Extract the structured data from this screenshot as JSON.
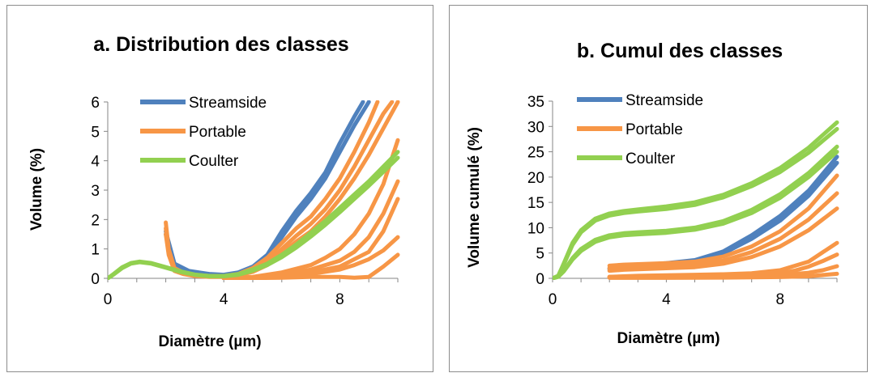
{
  "chart_data": [
    {
      "type": "line",
      "title": "a. Distribution des classes",
      "xlabel": "Diamètre (µm)",
      "ylabel": "Volume (%)",
      "xlim": [
        0,
        10
      ],
      "ylim": [
        0,
        6
      ],
      "xticks": [
        "0",
        "4",
        "8"
      ],
      "yticks": [
        "0",
        "1",
        "2",
        "3",
        "4",
        "5",
        "6"
      ],
      "legend": {
        "placement": "top-left",
        "entries": [
          "Streamside",
          "Portable",
          "Coulter"
        ]
      },
      "colors": {
        "Streamside": "#4f81bd",
        "Portable": "#f79646",
        "Coulter": "#92d050"
      },
      "series": [
        {
          "name": "Streamside",
          "color": "#4f81bd",
          "curves": [
            {
              "x": [
                2.0,
                2.3,
                2.8,
                3.5,
                4.0,
                4.5,
                5.0,
                5.5,
                6.0,
                6.5,
                7.0,
                7.5,
                8.0,
                8.5,
                8.8
              ],
              "y": [
                1.6,
                0.5,
                0.25,
                0.15,
                0.12,
                0.2,
                0.4,
                0.8,
                1.6,
                2.3,
                2.9,
                3.6,
                4.6,
                5.5,
                6.0
              ]
            },
            {
              "x": [
                2.0,
                2.3,
                2.8,
                3.5,
                4.0,
                4.5,
                5.0,
                5.5,
                6.0,
                6.5,
                7.0,
                7.5,
                8.0,
                8.5,
                9.0
              ],
              "y": [
                1.5,
                0.45,
                0.22,
                0.13,
                0.1,
                0.17,
                0.35,
                0.7,
                1.4,
                2.1,
                2.7,
                3.4,
                4.3,
                5.2,
                6.0
              ]
            }
          ]
        },
        {
          "name": "Portable",
          "color": "#f79646",
          "curves": [
            {
              "x": [
                2.0,
                2.1,
                2.3,
                2.6,
                3.0,
                3.5,
                4.0,
                4.5,
                5.0,
                5.5,
                6.0,
                6.5,
                7.0,
                7.5,
                8.0,
                8.5,
                9.0,
                9.3
              ],
              "y": [
                1.9,
                1.0,
                0.35,
                0.2,
                0.12,
                0.08,
                0.08,
                0.15,
                0.35,
                0.7,
                1.2,
                1.7,
                2.1,
                2.7,
                3.4,
                4.3,
                5.3,
                6.0
              ]
            },
            {
              "x": [
                2.0,
                2.1,
                2.3,
                2.6,
                3.0,
                3.5,
                4.0,
                4.5,
                5.0,
                5.5,
                6.0,
                6.5,
                7.0,
                7.5,
                8.0,
                8.5,
                9.0,
                9.5,
                9.8
              ],
              "y": [
                1.7,
                0.9,
                0.3,
                0.18,
                0.1,
                0.06,
                0.06,
                0.12,
                0.28,
                0.55,
                1.0,
                1.45,
                1.85,
                2.35,
                3.0,
                3.8,
                4.7,
                5.6,
                6.0
              ]
            },
            {
              "x": [
                2.0,
                2.1,
                2.3,
                2.6,
                3.0,
                3.5,
                4.0,
                4.5,
                5.0,
                5.5,
                6.0,
                6.5,
                7.0,
                7.5,
                8.0,
                8.5,
                9.0,
                9.5,
                10.0
              ],
              "y": [
                1.5,
                0.8,
                0.25,
                0.15,
                0.08,
                0.05,
                0.05,
                0.1,
                0.22,
                0.45,
                0.85,
                1.25,
                1.6,
                2.1,
                2.7,
                3.4,
                4.2,
                5.1,
                6.0
              ]
            },
            {
              "x": [
                4.0,
                5.0,
                6.0,
                7.0,
                7.5,
                8.0,
                8.5,
                9.0,
                9.5,
                10.0
              ],
              "y": [
                0.0,
                0.05,
                0.2,
                0.45,
                0.7,
                1.0,
                1.5,
                2.2,
                3.2,
                4.7
              ]
            },
            {
              "x": [
                4.0,
                5.0,
                6.0,
                7.0,
                8.0,
                8.5,
                9.0,
                9.5,
                10.0
              ],
              "y": [
                0.0,
                0.03,
                0.12,
                0.3,
                0.6,
                0.9,
                1.4,
                2.2,
                3.3
              ]
            },
            {
              "x": [
                4.0,
                5.0,
                6.0,
                7.0,
                8.0,
                9.0,
                9.5,
                10.0
              ],
              "y": [
                0.0,
                0.02,
                0.08,
                0.2,
                0.4,
                0.9,
                1.6,
                2.7
              ]
            },
            {
              "x": [
                4.0,
                6.0,
                7.0,
                8.0,
                8.5,
                9.0,
                9.5,
                10.0
              ],
              "y": [
                0.0,
                0.05,
                0.15,
                0.3,
                0.45,
                0.65,
                0.95,
                1.4
              ]
            },
            {
              "x": [
                4.0,
                6.0,
                7.0,
                8.0,
                8.5,
                9.0,
                9.5,
                10.0
              ],
              "y": [
                0.0,
                0.02,
                0.05,
                0.05,
                0.02,
                0.05,
                0.4,
                0.8
              ]
            }
          ]
        },
        {
          "name": "Coulter",
          "color": "#92d050",
          "curves": [
            {
              "x": [
                0.0,
                0.2,
                0.5,
                0.8,
                1.1,
                1.5,
                2.0,
                2.5,
                3.0,
                3.5,
                4.0,
                4.5,
                5.0,
                5.5,
                6.0,
                6.5,
                7.0,
                7.5,
                8.0,
                8.5,
                9.0,
                9.5,
                10.0
              ],
              "y": [
                0.0,
                0.15,
                0.38,
                0.52,
                0.57,
                0.52,
                0.38,
                0.24,
                0.13,
                0.08,
                0.08,
                0.14,
                0.3,
                0.5,
                0.8,
                1.15,
                1.55,
                1.95,
                2.4,
                2.85,
                3.3,
                3.8,
                4.3
              ]
            },
            {
              "x": [
                0.0,
                0.2,
                0.5,
                0.8,
                1.1,
                1.5,
                2.0,
                2.5,
                3.0,
                3.5,
                4.0,
                4.5,
                5.0,
                5.5,
                6.0,
                6.5,
                7.0,
                7.5,
                8.0,
                8.5,
                9.0,
                9.5,
                10.0
              ],
              "y": [
                0.0,
                0.13,
                0.35,
                0.5,
                0.55,
                0.5,
                0.36,
                0.22,
                0.12,
                0.07,
                0.07,
                0.12,
                0.26,
                0.45,
                0.72,
                1.05,
                1.42,
                1.82,
                2.25,
                2.7,
                3.15,
                3.62,
                4.1
              ]
            }
          ]
        }
      ]
    },
    {
      "type": "line",
      "title": "b. Cumul des classes",
      "xlabel": "Diamètre (µm)",
      "ylabel": "Volume cumulé (%)",
      "xlim": [
        0,
        10
      ],
      "ylim": [
        0,
        35
      ],
      "xticks": [
        "0",
        "4",
        "8"
      ],
      "yticks": [
        "0",
        "5",
        "10",
        "15",
        "20",
        "25",
        "30",
        "35"
      ],
      "legend": {
        "placement": "top-left",
        "entries": [
          "Streamside",
          "Portable",
          "Coulter"
        ]
      },
      "colors": {
        "Streamside": "#4f81bd",
        "Portable": "#f79646",
        "Coulter": "#92d050"
      },
      "series": [
        {
          "name": "Streamside",
          "color": "#4f81bd",
          "curves": [
            {
              "x": [
                2.0,
                3.0,
                4.0,
                5.0,
                6.0,
                7.0,
                8.0,
                9.0,
                10.0
              ],
              "y": [
                2.0,
                2.6,
                3.0,
                3.6,
                5.3,
                8.5,
                12.3,
                17.3,
                24.0
              ]
            },
            {
              "x": [
                2.0,
                3.0,
                4.0,
                5.0,
                6.0,
                7.0,
                8.0,
                9.0,
                10.0
              ],
              "y": [
                1.8,
                2.4,
                2.8,
                3.3,
                4.9,
                7.8,
                11.4,
                16.3,
                22.8
              ]
            }
          ]
        },
        {
          "name": "Portable",
          "color": "#f79646",
          "curves": [
            {
              "x": [
                2.0,
                2.5,
                3.0,
                4.0,
                5.0,
                6.0,
                7.0,
                8.0,
                9.0,
                10.0
              ],
              "y": [
                2.5,
                2.7,
                2.8,
                3.0,
                3.3,
                4.3,
                6.3,
                9.3,
                13.8,
                20.3
              ]
            },
            {
              "x": [
                2.0,
                2.5,
                3.0,
                4.0,
                5.0,
                6.0,
                7.0,
                8.0,
                9.0,
                10.0
              ],
              "y": [
                2.0,
                2.2,
                2.3,
                2.5,
                2.8,
                3.5,
                5.2,
                7.8,
                11.6,
                16.8
              ]
            },
            {
              "x": [
                2.0,
                2.5,
                3.0,
                4.0,
                5.0,
                6.0,
                7.0,
                8.0,
                9.0,
                10.0
              ],
              "y": [
                1.5,
                1.7,
                1.8,
                2.0,
                2.2,
                2.9,
                4.2,
                6.3,
                9.5,
                13.8
              ]
            },
            {
              "x": [
                2.0,
                3.0,
                4.0,
                5.0,
                6.0,
                7.0,
                8.0,
                9.0,
                10.0
              ],
              "y": [
                0.3,
                0.5,
                0.6,
                0.7,
                0.8,
                1.0,
                1.6,
                3.3,
                7.0
              ]
            },
            {
              "x": [
                2.0,
                4.0,
                6.0,
                7.0,
                8.0,
                8.5,
                9.0,
                9.5,
                10.0
              ],
              "y": [
                0.3,
                0.3,
                0.4,
                0.6,
                1.0,
                1.5,
                2.3,
                3.4,
                4.7
              ]
            },
            {
              "x": [
                2.0,
                4.0,
                6.0,
                7.0,
                8.0,
                9.0,
                9.5,
                10.0
              ],
              "y": [
                0.2,
                0.2,
                0.3,
                0.4,
                0.6,
                1.1,
                1.6,
                2.4
              ]
            },
            {
              "x": [
                2.0,
                4.0,
                6.0,
                8.0,
                9.0,
                10.0
              ],
              "y": [
                0.1,
                0.1,
                0.15,
                0.25,
                0.4,
                0.9
              ]
            }
          ]
        },
        {
          "name": "Coulter",
          "color": "#92d050",
          "curves": [
            {
              "x": [
                0.0,
                0.2,
                0.4,
                0.7,
                1.0,
                1.5,
                2.0,
                2.5,
                3.0,
                4.0,
                5.0,
                6.0,
                7.0,
                8.0,
                9.0,
                10.0
              ],
              "y": [
                0.0,
                0.5,
                3.0,
                7.0,
                9.5,
                11.8,
                12.8,
                13.3,
                13.6,
                14.2,
                15.0,
                16.5,
                18.8,
                21.8,
                25.8,
                30.8
              ]
            },
            {
              "x": [
                0.0,
                0.2,
                0.4,
                0.7,
                1.0,
                1.5,
                2.0,
                2.5,
                3.0,
                4.0,
                5.0,
                6.0,
                7.0,
                8.0,
                9.0,
                10.0
              ],
              "y": [
                0.0,
                0.5,
                2.8,
                6.6,
                9.1,
                11.4,
                12.4,
                12.9,
                13.2,
                13.7,
                14.5,
                16.0,
                18.2,
                21.0,
                24.8,
                29.5
              ]
            },
            {
              "x": [
                0.0,
                0.2,
                0.4,
                0.7,
                1.0,
                1.5,
                2.0,
                2.5,
                3.0,
                4.0,
                5.0,
                6.0,
                7.0,
                8.0,
                9.0,
                10.0
              ],
              "y": [
                0.0,
                0.3,
                1.5,
                4.0,
                5.8,
                7.6,
                8.5,
                8.9,
                9.1,
                9.4,
                10.0,
                11.3,
                13.5,
                16.6,
                20.8,
                26.0
              ]
            },
            {
              "x": [
                0.0,
                0.2,
                0.4,
                0.7,
                1.0,
                1.5,
                2.0,
                2.5,
                3.0,
                4.0,
                5.0,
                6.0,
                7.0,
                8.0,
                9.0,
                10.0
              ],
              "y": [
                0.0,
                0.3,
                1.4,
                3.7,
                5.4,
                7.2,
                8.1,
                8.5,
                8.7,
                9.0,
                9.6,
                10.8,
                12.9,
                15.9,
                20.0,
                25.0
              ]
            }
          ]
        }
      ]
    }
  ]
}
